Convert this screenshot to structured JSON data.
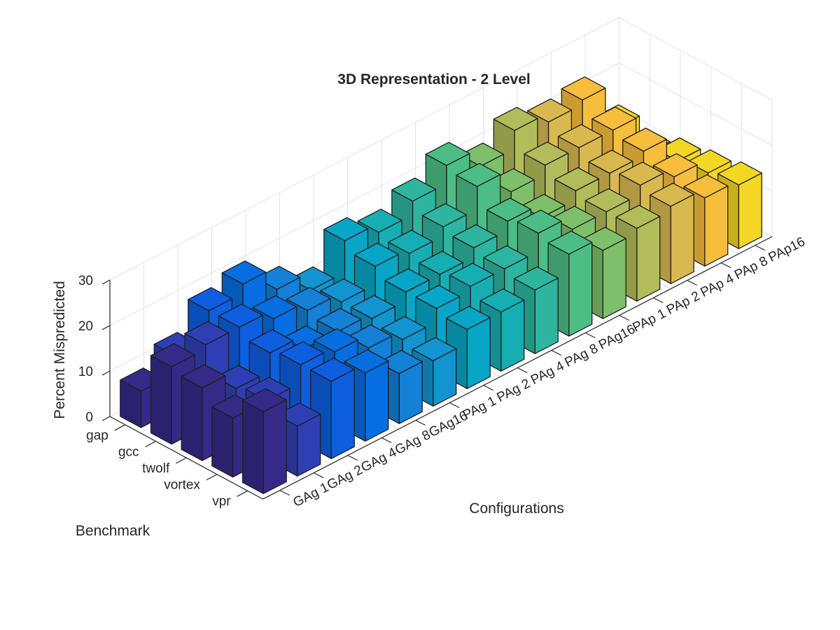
{
  "chart_data": {
    "type": "bar3d",
    "title": "3D Representation - 2 Level",
    "xlabel": "Configurations",
    "ylabel": "Benchmark",
    "zlabel": "Percent Mispredicted",
    "zlim": [
      0,
      30
    ],
    "zticks": [
      0,
      10,
      20,
      30
    ],
    "grid": true,
    "configurations": [
      "GAg 1",
      "GAg 2",
      "GAg 4",
      "GAg 8",
      "GAg16",
      "PAg 1",
      "PAg 2",
      "PAg 4",
      "PAg 8",
      "PAg16",
      "PAp 1",
      "PAp 2",
      "PAp 4",
      "PAp 8",
      "PAp16"
    ],
    "benchmarks": [
      "gap",
      "gcc",
      "twolf",
      "vortex",
      "vpr"
    ],
    "values": [
      [
        8,
        17,
        16,
        13,
        18
      ],
      [
        12,
        18,
        12,
        13,
        11
      ],
      [
        18,
        18,
        16,
        17,
        17
      ],
      [
        20,
        16,
        13,
        16,
        15
      ],
      [
        15,
        14,
        13,
        13,
        11
      ],
      [
        11,
        12,
        12,
        11,
        10
      ],
      [
        18,
        16,
        14,
        14,
        13
      ],
      [
        16,
        15,
        14,
        15,
        13
      ],
      [
        19,
        17,
        16,
        15,
        14
      ],
      [
        23,
        22,
        18,
        19,
        18
      ],
      [
        19,
        17,
        15,
        16,
        15
      ],
      [
        23,
        19,
        17,
        16,
        16
      ],
      [
        21,
        19,
        17,
        18,
        17
      ],
      [
        22,
        19,
        18,
        16,
        15
      ],
      [
        12,
        10,
        12,
        13,
        14
      ]
    ],
    "colors": [
      "#352a87",
      "#2e3fb5",
      "#0e5ee0",
      "#066ee0",
      "#1480d6",
      "#1294d0",
      "#08a6c6",
      "#17aeb3",
      "#2eb59f",
      "#4cbd85",
      "#7ebf6a",
      "#b2bc5a",
      "#d8b94f",
      "#f7bd3d",
      "#f3d724",
      "#f9fb0e"
    ]
  }
}
